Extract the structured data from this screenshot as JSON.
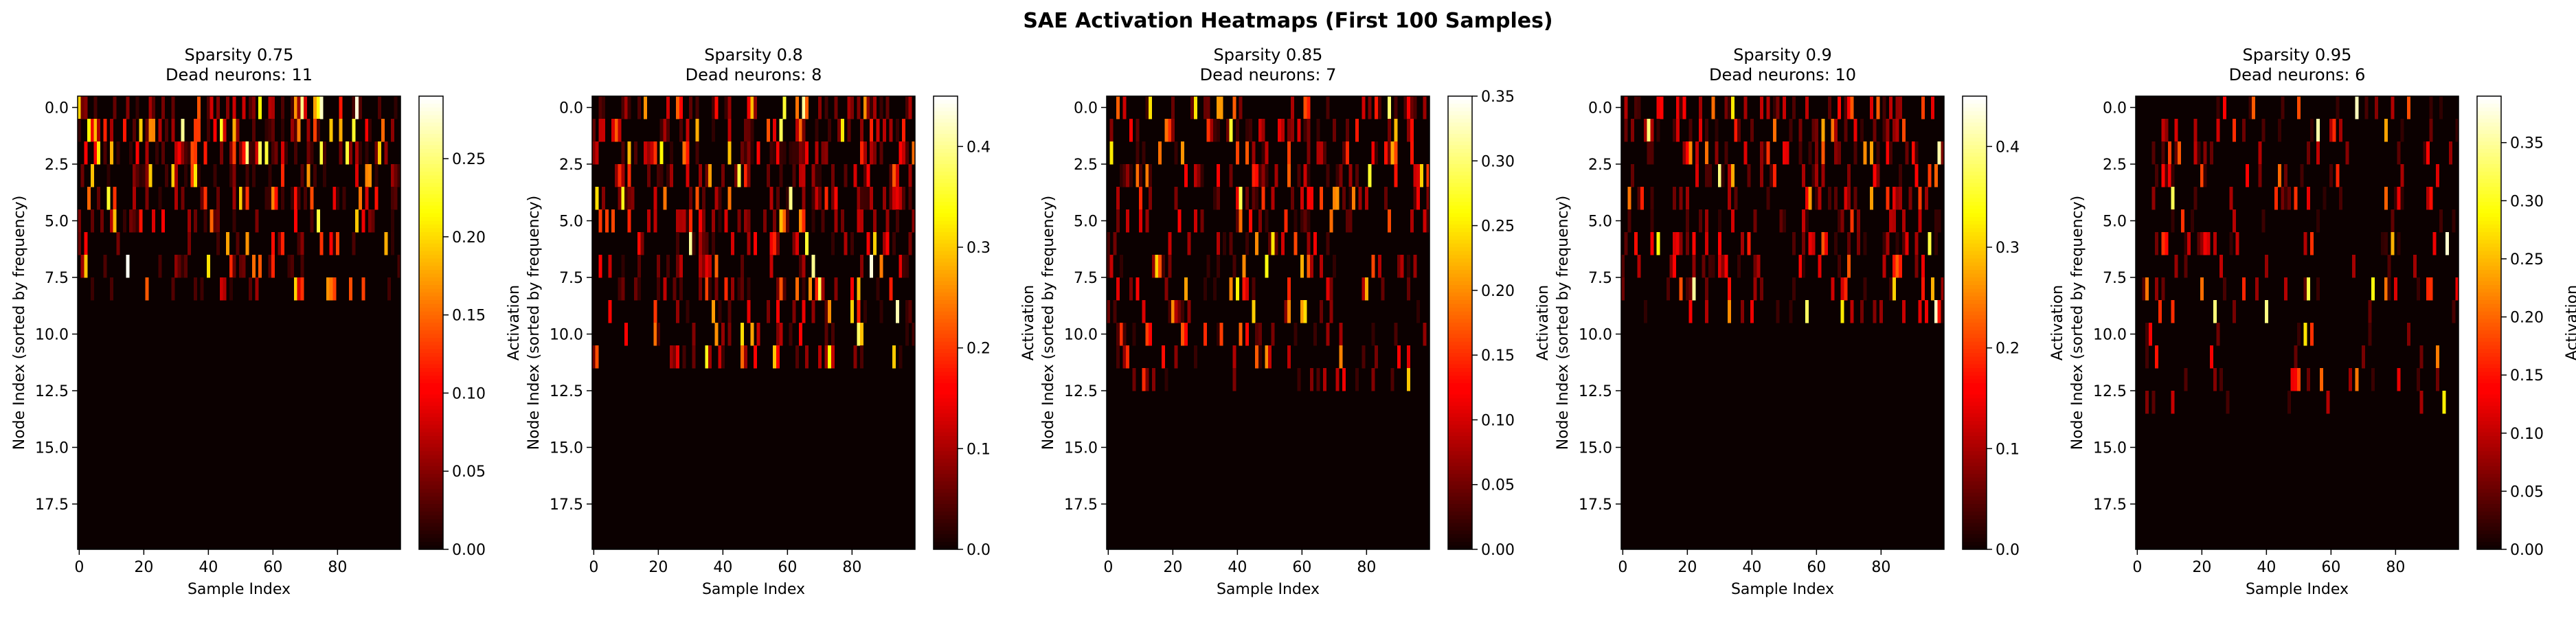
{
  "figure": {
    "title": "SAE Activation Heatmaps (First 100 Samples)"
  },
  "colormap": "hot",
  "chart_data": [
    {
      "type": "heatmap",
      "title_line1": "Sparsity 0.75",
      "title_line2": "Dead neurons: 11",
      "xlabel": "Sample Index",
      "ylabel": "Node Index (sorted by frequency)",
      "colorbar_label": "Activation",
      "rows": 20,
      "cols": 100,
      "active_rows": 9,
      "density": 0.45,
      "hot_prob": 0.08,
      "max_row_activity": 0.55,
      "vmin": 0,
      "vmax": 0.29,
      "xticks": [
        0,
        20,
        40,
        60,
        80
      ],
      "yticks": [
        "0.0",
        "2.5",
        "5.0",
        "7.5",
        "10.0",
        "12.5",
        "15.0",
        "17.5"
      ],
      "cticks": [
        "0.00",
        "0.05",
        "0.10",
        "0.15",
        "0.20",
        "0.25"
      ],
      "cticks_vals": [
        0,
        0.05,
        0.1,
        0.15,
        0.2,
        0.25
      ]
    },
    {
      "type": "heatmap",
      "title_line1": "Sparsity 0.8",
      "title_line2": "Dead neurons: 8",
      "xlabel": "Sample Index",
      "ylabel": "Node Index (sorted by frequency)",
      "colorbar_label": "Activation",
      "rows": 20,
      "cols": 100,
      "active_rows": 12,
      "density": 0.42,
      "hot_prob": 0.04,
      "max_row_activity": 0.45,
      "vmin": 0,
      "vmax": 0.45,
      "xticks": [
        0,
        20,
        40,
        60,
        80
      ],
      "yticks": [
        "0.0",
        "2.5",
        "5.0",
        "7.5",
        "10.0",
        "12.5",
        "15.0",
        "17.5"
      ],
      "cticks": [
        "0.0",
        "0.1",
        "0.2",
        "0.3",
        "0.4"
      ],
      "cticks_vals": [
        0,
        0.1,
        0.2,
        0.3,
        0.4
      ]
    },
    {
      "type": "heatmap",
      "title_line1": "Sparsity 0.85",
      "title_line2": "Dead neurons: 7",
      "xlabel": "Sample Index",
      "ylabel": "Node Index (sorted by frequency)",
      "colorbar_label": "Activation",
      "rows": 20,
      "cols": 100,
      "active_rows": 13,
      "density": 0.33,
      "hot_prob": 0.05,
      "max_row_activity": 0.45,
      "vmin": 0,
      "vmax": 0.35,
      "xticks": [
        0,
        20,
        40,
        60,
        80
      ],
      "yticks": [
        "0.0",
        "2.5",
        "5.0",
        "7.5",
        "10.0",
        "12.5",
        "15.0",
        "17.5"
      ],
      "cticks": [
        "0.00",
        "0.05",
        "0.10",
        "0.15",
        "0.20",
        "0.25",
        "0.30",
        "0.35"
      ],
      "cticks_vals": [
        0,
        0.05,
        0.1,
        0.15,
        0.2,
        0.25,
        0.3,
        0.35
      ]
    },
    {
      "type": "heatmap",
      "title_line1": "Sparsity 0.9",
      "title_line2": "Dead neurons: 10",
      "xlabel": "Sample Index",
      "ylabel": "Node Index (sorted by frequency)",
      "colorbar_label": "Activation",
      "rows": 20,
      "cols": 100,
      "active_rows": 10,
      "density": 0.35,
      "hot_prob": 0.03,
      "max_row_activity": 0.4,
      "vmin": 0,
      "vmax": 0.45,
      "xticks": [
        0,
        20,
        40,
        60,
        80
      ],
      "yticks": [
        "0.0",
        "2.5",
        "5.0",
        "7.5",
        "10.0",
        "12.5",
        "15.0",
        "17.5"
      ],
      "cticks": [
        "0.0",
        "0.1",
        "0.2",
        "0.3",
        "0.4"
      ],
      "cticks_vals": [
        0,
        0.1,
        0.2,
        0.3,
        0.4
      ]
    },
    {
      "type": "heatmap",
      "title_line1": "Sparsity 0.95",
      "title_line2": "Dead neurons: 6",
      "xlabel": "Sample Index",
      "ylabel": "Node Index (sorted by frequency)",
      "colorbar_label": "Activation",
      "rows": 20,
      "cols": 100,
      "active_rows": 14,
      "density": 0.18,
      "hot_prob": 0.04,
      "max_row_activity": 0.3,
      "vmin": 0,
      "vmax": 0.39,
      "xticks": [
        0,
        20,
        40,
        60,
        80
      ],
      "yticks": [
        "0.0",
        "2.5",
        "5.0",
        "7.5",
        "10.0",
        "12.5",
        "15.0",
        "17.5"
      ],
      "cticks": [
        "0.00",
        "0.05",
        "0.10",
        "0.15",
        "0.20",
        "0.25",
        "0.30",
        "0.35"
      ],
      "cticks_vals": [
        0,
        0.05,
        0.1,
        0.15,
        0.2,
        0.25,
        0.3,
        0.35
      ]
    }
  ]
}
